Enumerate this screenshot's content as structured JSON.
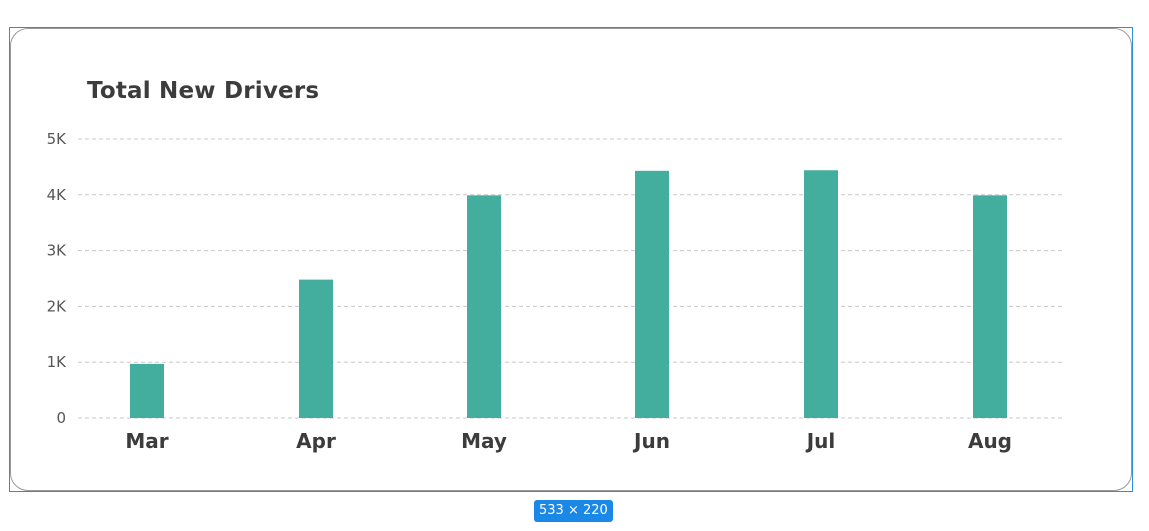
{
  "chart_data": {
    "type": "bar",
    "title": "Total New Drivers",
    "categories": [
      "Mar",
      "Apr",
      "May",
      "Jun",
      "Jul",
      "Aug"
    ],
    "values": [
      970,
      2480,
      3990,
      4430,
      4440,
      3990
    ],
    "ylim": [
      0,
      5000
    ],
    "yticks": [
      0,
      1000,
      2000,
      3000,
      4000,
      5000
    ],
    "ytick_labels": [
      "0",
      "1K",
      "2K",
      "3K",
      "4K",
      "5K"
    ],
    "grid": true,
    "bar_color": "#43ae9e",
    "grid_color": "#c8c8c8"
  },
  "selection_badge": "533 × 220",
  "colors": {
    "selection": "#2b8fe0",
    "badge": "#1a88e6"
  }
}
